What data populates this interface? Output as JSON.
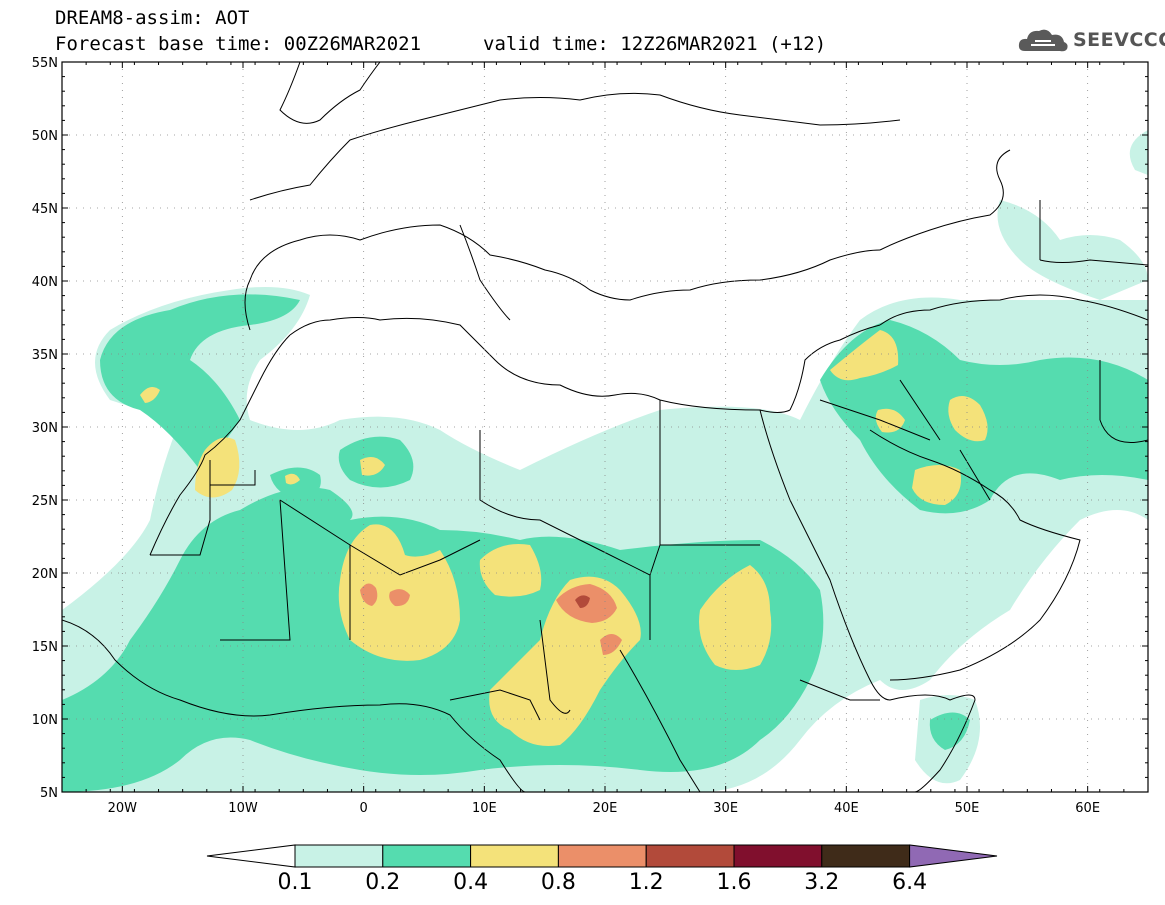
{
  "header": {
    "title_line1": "DREAM8-assim: AOT",
    "title_line2": "Forecast base time: 00Z26MAR2021",
    "valid_time": "valid time: 12Z26MAR2021 (+12)",
    "logo_text": "SEEVCCC"
  },
  "map": {
    "projection": "lat-lon",
    "lon_range": [
      -25,
      65
    ],
    "lat_range": [
      5,
      55
    ],
    "lat_labels": [
      "5N",
      "10N",
      "15N",
      "20N",
      "25N",
      "30N",
      "35N",
      "40N",
      "45N",
      "50N",
      "55N"
    ],
    "lon_labels": [
      "20W",
      "10W",
      "0",
      "10E",
      "20E",
      "30E",
      "40E",
      "50E",
      "60E"
    ],
    "gridlines": "dotted"
  },
  "colorbar": {
    "labels": [
      "0.1",
      "0.2",
      "0.4",
      "0.8",
      "1.2",
      "1.6",
      "3.2",
      "6.4"
    ],
    "colors": [
      "#c8f2e6",
      "#55dcaf",
      "#f4e27a",
      "#eb8f69",
      "#b24a3a",
      "#800f2d",
      "#3f2b19",
      "#9069b4"
    ],
    "extend": "both"
  }
}
